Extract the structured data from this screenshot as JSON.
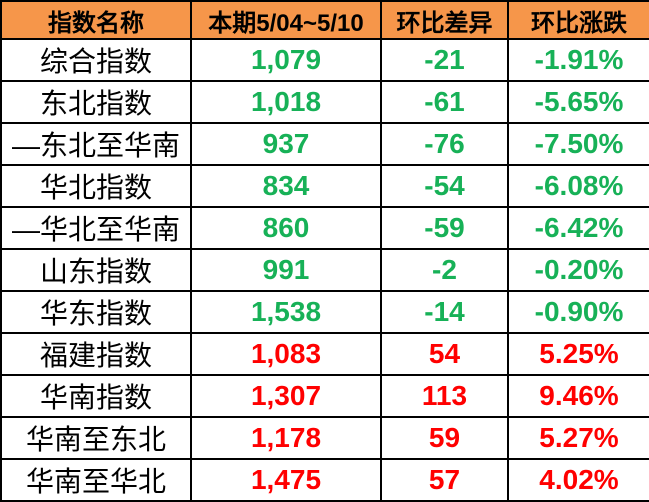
{
  "colors": {
    "header_bg": "#F6964A",
    "down_green": "#17B157",
    "up_red": "#FF0000",
    "border": "#000000",
    "row_bg": "#FFFFFF"
  },
  "header": {
    "name": "指数名称",
    "period": "本期5/04~5/10",
    "diff": "环比差异",
    "pct": "环比涨跌"
  },
  "rows": [
    {
      "name": "综合指数",
      "value": "1,079",
      "diff": "-21",
      "pct": "-1.91%",
      "trend": "down"
    },
    {
      "name": "东北指数",
      "value": "1,018",
      "diff": "-61",
      "pct": "-5.65%",
      "trend": "down"
    },
    {
      "name": "—东北至华南",
      "value": "937",
      "diff": "-76",
      "pct": "-7.50%",
      "trend": "down"
    },
    {
      "name": "华北指数",
      "value": "834",
      "diff": "-54",
      "pct": "-6.08%",
      "trend": "down"
    },
    {
      "name": "—华北至华南",
      "value": "860",
      "diff": "-59",
      "pct": "-6.42%",
      "trend": "down"
    },
    {
      "name": "山东指数",
      "value": "991",
      "diff": "-2",
      "pct": "-0.20%",
      "trend": "down"
    },
    {
      "name": "华东指数",
      "value": "1,538",
      "diff": "-14",
      "pct": "-0.90%",
      "trend": "down"
    },
    {
      "name": "福建指数",
      "value": "1,083",
      "diff": "54",
      "pct": "5.25%",
      "trend": "up"
    },
    {
      "name": "华南指数",
      "value": "1,307",
      "diff": "113",
      "pct": "9.46%",
      "trend": "up"
    },
    {
      "name": "华南至东北",
      "value": "1,178",
      "diff": "59",
      "pct": "5.27%",
      "trend": "up"
    },
    {
      "name": "华南至华北",
      "value": "1,475",
      "diff": "57",
      "pct": "4.02%",
      "trend": "up"
    }
  ],
  "chart_data": {
    "type": "table",
    "columns": [
      "指数名称",
      "本期5/04~5/10",
      "环比差异",
      "环比涨跌"
    ],
    "rows": [
      [
        "综合指数",
        1079,
        -21,
        "-1.91%"
      ],
      [
        "东北指数",
        1018,
        -61,
        "-5.65%"
      ],
      [
        "—东北至华南",
        937,
        -76,
        "-7.50%"
      ],
      [
        "华北指数",
        834,
        -54,
        "-6.08%"
      ],
      [
        "—华北至华南",
        860,
        -59,
        "-6.42%"
      ],
      [
        "山东指数",
        991,
        -2,
        "-0.20%"
      ],
      [
        "华东指数",
        1538,
        -14,
        "-0.90%"
      ],
      [
        "福建指数",
        1083,
        54,
        "5.25%"
      ],
      [
        "华南指数",
        1307,
        113,
        "9.46%"
      ],
      [
        "华南至东北",
        1178,
        59,
        "5.27%"
      ],
      [
        "华南至华北",
        1475,
        57,
        "4.02%"
      ]
    ],
    "notes": "negative change rendered green, positive change rendered red; header row orange"
  }
}
